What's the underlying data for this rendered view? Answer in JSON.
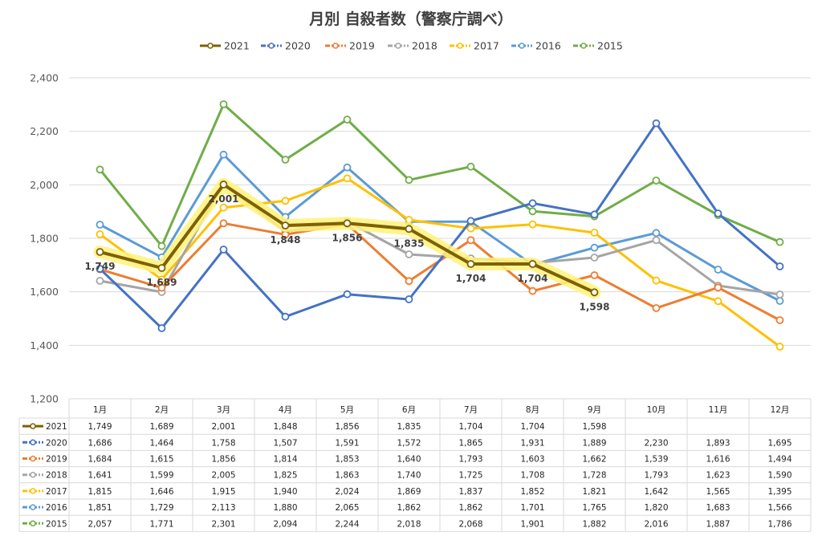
{
  "chart_data": {
    "type": "line",
    "title": "月別 自殺者数（警察庁調べ）",
    "categories": [
      "1月",
      "2月",
      "3月",
      "4月",
      "5月",
      "6月",
      "7月",
      "8月",
      "9月",
      "10月",
      "11月",
      "12月"
    ],
    "ylim": [
      1200,
      2400
    ],
    "yticks": [
      1200,
      1400,
      1600,
      1800,
      2000,
      2200,
      2400
    ],
    "grid": true,
    "legend_position": "top",
    "data_table": true,
    "series": [
      {
        "name": "2021",
        "color": "#7f6000",
        "values": [
          1749,
          1689,
          2001,
          1848,
          1856,
          1835,
          1704,
          1704,
          1598,
          null,
          null,
          null
        ],
        "labels": true,
        "glow": "#fff27a",
        "width": 4
      },
      {
        "name": "2020",
        "color": "#4472c4",
        "values": [
          1686,
          1464,
          1758,
          1507,
          1591,
          1572,
          1865,
          1931,
          1889,
          2230,
          1893,
          1695
        ],
        "width": 3
      },
      {
        "name": "2019",
        "color": "#ed7d31",
        "values": [
          1684,
          1615,
          1856,
          1814,
          1853,
          1640,
          1793,
          1603,
          1662,
          1539,
          1616,
          1494
        ],
        "width": 3
      },
      {
        "name": "2018",
        "color": "#a5a5a5",
        "values": [
          1641,
          1599,
          2005,
          1825,
          1863,
          1740,
          1725,
          1708,
          1728,
          1793,
          1623,
          1590
        ],
        "width": 3
      },
      {
        "name": "2017",
        "color": "#ffc000",
        "values": [
          1815,
          1646,
          1915,
          1940,
          2024,
          1869,
          1837,
          1852,
          1821,
          1642,
          1565,
          1395
        ],
        "width": 3
      },
      {
        "name": "2016",
        "color": "#5b9bd5",
        "values": [
          1851,
          1729,
          2113,
          1880,
          2065,
          1862,
          1862,
          1701,
          1765,
          1820,
          1683,
          1566
        ],
        "width": 3
      },
      {
        "name": "2015",
        "color": "#70ad47",
        "values": [
          2057,
          1771,
          2301,
          2094,
          2244,
          2018,
          2068,
          1901,
          1882,
          2016,
          1887,
          1786
        ],
        "width": 3
      }
    ]
  }
}
